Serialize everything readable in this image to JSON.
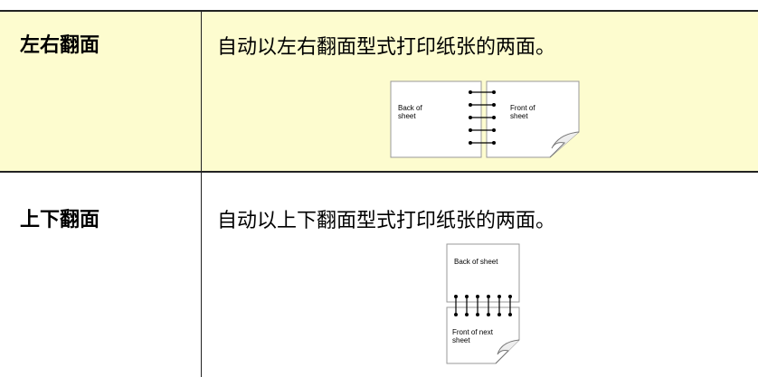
{
  "table": {
    "rows": [
      {
        "label": "左右翻面",
        "description": "自动以左右翻面型式打印纸张的两面。",
        "diagram": {
          "back": "Back of sheet",
          "front": "Front of sheet"
        }
      },
      {
        "label": "上下翻面",
        "description": "自动以上下翻面型式打印纸张的两面。",
        "diagram": {
          "back": "Back of sheet",
          "front": "Front of next sheet"
        }
      }
    ]
  }
}
